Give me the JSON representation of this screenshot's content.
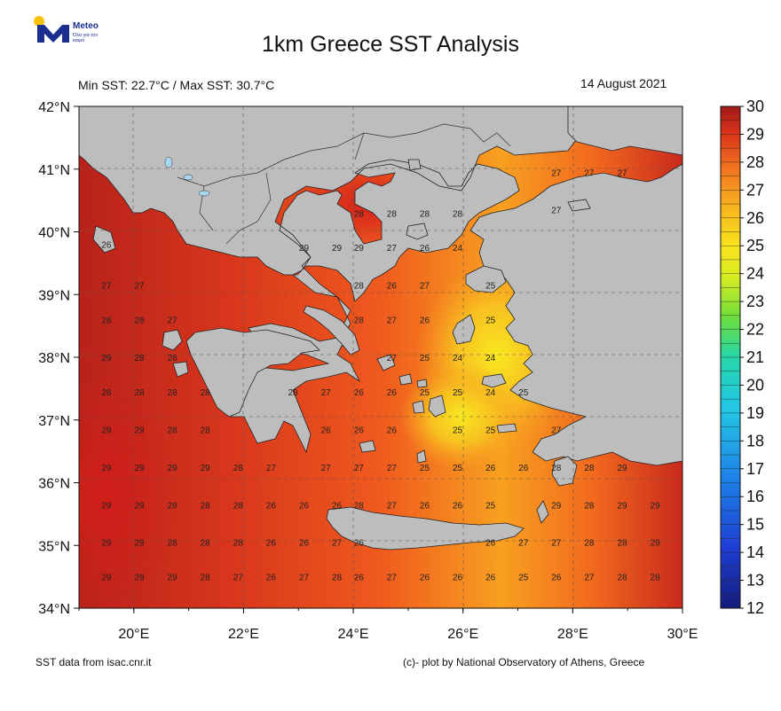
{
  "header": {
    "logo_text": "Meteo",
    "logo_subtext": "Όλα για τον καιρό",
    "title": "1km Greece SST Analysis",
    "minmax": "Min SST: 22.7°C / Max SST: 30.7°C",
    "date": "14 August 2021"
  },
  "footer": {
    "left": "SST data from isac.cnr.it",
    "right": "(c)- plot by National Observatory of Athens, Greece"
  },
  "map": {
    "lon_range": [
      19,
      30
    ],
    "lat_range": [
      34,
      42
    ],
    "lat_ticks": [
      "42°N",
      "41°N",
      "40°N",
      "39°N",
      "38°N",
      "37°N",
      "36°N",
      "35°N",
      "34°N"
    ],
    "lon_ticks": [
      "20°E",
      "22°E",
      "24°E",
      "26°E",
      "28°E",
      "30°E"
    ],
    "grid_lines": true,
    "colorbar": {
      "min": 12,
      "max": 30,
      "ticks": [
        "30",
        "29",
        "28",
        "27",
        "26",
        "25",
        "24",
        "23",
        "22",
        "21",
        "20",
        "19",
        "18",
        "17",
        "16",
        "15",
        "14",
        "13",
        "12"
      ]
    },
    "land_color": "#bdbdbd",
    "sea_labels": [
      {
        "lon": 19.5,
        "lat": 39.8,
        "v": "26"
      },
      {
        "lon": 19.5,
        "lat": 39.15,
        "v": "27"
      },
      {
        "lon": 20.1,
        "lat": 39.15,
        "v": "27"
      },
      {
        "lon": 19.5,
        "lat": 38.6,
        "v": "28"
      },
      {
        "lon": 20.1,
        "lat": 38.6,
        "v": "28"
      },
      {
        "lon": 20.7,
        "lat": 38.6,
        "v": "27"
      },
      {
        "lon": 19.5,
        "lat": 38.0,
        "v": "29"
      },
      {
        "lon": 20.1,
        "lat": 38.0,
        "v": "28"
      },
      {
        "lon": 20.7,
        "lat": 38.0,
        "v": "28"
      },
      {
        "lon": 19.5,
        "lat": 37.45,
        "v": "28"
      },
      {
        "lon": 20.1,
        "lat": 37.45,
        "v": "28"
      },
      {
        "lon": 20.7,
        "lat": 37.45,
        "v": "28"
      },
      {
        "lon": 21.3,
        "lat": 37.45,
        "v": "28"
      },
      {
        "lon": 19.5,
        "lat": 36.85,
        "v": "29"
      },
      {
        "lon": 20.1,
        "lat": 36.85,
        "v": "29"
      },
      {
        "lon": 20.7,
        "lat": 36.85,
        "v": "28"
      },
      {
        "lon": 21.3,
        "lat": 36.85,
        "v": "28"
      },
      {
        "lon": 19.5,
        "lat": 36.25,
        "v": "29"
      },
      {
        "lon": 20.1,
        "lat": 36.25,
        "v": "29"
      },
      {
        "lon": 20.7,
        "lat": 36.25,
        "v": "29"
      },
      {
        "lon": 21.3,
        "lat": 36.25,
        "v": "29"
      },
      {
        "lon": 21.9,
        "lat": 36.25,
        "v": "28"
      },
      {
        "lon": 22.5,
        "lat": 36.25,
        "v": "27"
      },
      {
        "lon": 19.5,
        "lat": 35.65,
        "v": "29"
      },
      {
        "lon": 20.1,
        "lat": 35.65,
        "v": "29"
      },
      {
        "lon": 20.7,
        "lat": 35.65,
        "v": "28"
      },
      {
        "lon": 21.3,
        "lat": 35.65,
        "v": "28"
      },
      {
        "lon": 21.9,
        "lat": 35.65,
        "v": "28"
      },
      {
        "lon": 22.5,
        "lat": 35.65,
        "v": "26"
      },
      {
        "lon": 23.1,
        "lat": 35.65,
        "v": "26"
      },
      {
        "lon": 23.7,
        "lat": 35.65,
        "v": "26"
      },
      {
        "lon": 24.1,
        "lat": 35.65,
        "v": "28"
      },
      {
        "lon": 24.7,
        "lat": 35.65,
        "v": "27"
      },
      {
        "lon": 25.3,
        "lat": 35.65,
        "v": "26"
      },
      {
        "lon": 25.9,
        "lat": 35.65,
        "v": "26"
      },
      {
        "lon": 26.5,
        "lat": 35.65,
        "v": "25"
      },
      {
        "lon": 27.7,
        "lat": 35.65,
        "v": "29"
      },
      {
        "lon": 28.3,
        "lat": 35.65,
        "v": "28"
      },
      {
        "lon": 28.9,
        "lat": 35.65,
        "v": "29"
      },
      {
        "lon": 29.5,
        "lat": 35.65,
        "v": "29"
      },
      {
        "lon": 19.5,
        "lat": 35.05,
        "v": "29"
      },
      {
        "lon": 20.1,
        "lat": 35.05,
        "v": "29"
      },
      {
        "lon": 20.7,
        "lat": 35.05,
        "v": "28"
      },
      {
        "lon": 21.3,
        "lat": 35.05,
        "v": "28"
      },
      {
        "lon": 21.9,
        "lat": 35.05,
        "v": "28"
      },
      {
        "lon": 22.5,
        "lat": 35.05,
        "v": "26"
      },
      {
        "lon": 23.1,
        "lat": 35.05,
        "v": "26"
      },
      {
        "lon": 23.7,
        "lat": 35.05,
        "v": "27"
      },
      {
        "lon": 24.1,
        "lat": 35.05,
        "v": "26"
      },
      {
        "lon": 26.5,
        "lat": 35.05,
        "v": "26"
      },
      {
        "lon": 27.1,
        "lat": 35.05,
        "v": "27"
      },
      {
        "lon": 27.7,
        "lat": 35.05,
        "v": "27"
      },
      {
        "lon": 28.3,
        "lat": 35.05,
        "v": "28"
      },
      {
        "lon": 28.9,
        "lat": 35.05,
        "v": "28"
      },
      {
        "lon": 29.5,
        "lat": 35.05,
        "v": "29"
      },
      {
        "lon": 19.5,
        "lat": 34.5,
        "v": "29"
      },
      {
        "lon": 20.1,
        "lat": 34.5,
        "v": "29"
      },
      {
        "lon": 20.7,
        "lat": 34.5,
        "v": "29"
      },
      {
        "lon": 21.3,
        "lat": 34.5,
        "v": "28"
      },
      {
        "lon": 21.9,
        "lat": 34.5,
        "v": "27"
      },
      {
        "lon": 22.5,
        "lat": 34.5,
        "v": "26"
      },
      {
        "lon": 23.1,
        "lat": 34.5,
        "v": "27"
      },
      {
        "lon": 23.7,
        "lat": 34.5,
        "v": "28"
      },
      {
        "lon": 24.1,
        "lat": 34.5,
        "v": "26"
      },
      {
        "lon": 24.7,
        "lat": 34.5,
        "v": "27"
      },
      {
        "lon": 25.3,
        "lat": 34.5,
        "v": "26"
      },
      {
        "lon": 25.9,
        "lat": 34.5,
        "v": "26"
      },
      {
        "lon": 26.5,
        "lat": 34.5,
        "v": "26"
      },
      {
        "lon": 27.1,
        "lat": 34.5,
        "v": "25"
      },
      {
        "lon": 27.7,
        "lat": 34.5,
        "v": "26"
      },
      {
        "lon": 28.3,
        "lat": 34.5,
        "v": "27"
      },
      {
        "lon": 28.9,
        "lat": 34.5,
        "v": "28"
      },
      {
        "lon": 29.5,
        "lat": 34.5,
        "v": "28"
      },
      {
        "lon": 23.1,
        "lat": 39.75,
        "v": "29"
      },
      {
        "lon": 23.7,
        "lat": 39.75,
        "v": "29"
      },
      {
        "lon": 24.1,
        "lat": 39.75,
        "v": "29"
      },
      {
        "lon": 24.7,
        "lat": 39.75,
        "v": "27"
      },
      {
        "lon": 25.3,
        "lat": 39.75,
        "v": "26"
      },
      {
        "lon": 25.9,
        "lat": 39.75,
        "v": "24"
      },
      {
        "lon": 24.1,
        "lat": 40.3,
        "v": "28"
      },
      {
        "lon": 24.7,
        "lat": 40.3,
        "v": "28"
      },
      {
        "lon": 25.3,
        "lat": 40.3,
        "v": "28"
      },
      {
        "lon": 25.9,
        "lat": 40.3,
        "v": "28"
      },
      {
        "lon": 24.1,
        "lat": 39.15,
        "v": "28"
      },
      {
        "lon": 24.7,
        "lat": 39.15,
        "v": "26"
      },
      {
        "lon": 25.3,
        "lat": 39.15,
        "v": "27"
      },
      {
        "lon": 26.5,
        "lat": 39.15,
        "v": "25"
      },
      {
        "lon": 24.1,
        "lat": 38.6,
        "v": "28"
      },
      {
        "lon": 24.7,
        "lat": 38.6,
        "v": "27"
      },
      {
        "lon": 25.3,
        "lat": 38.6,
        "v": "26"
      },
      {
        "lon": 26.5,
        "lat": 38.6,
        "v": "25"
      },
      {
        "lon": 24.7,
        "lat": 38.0,
        "v": "27"
      },
      {
        "lon": 25.3,
        "lat": 38.0,
        "v": "25"
      },
      {
        "lon": 25.9,
        "lat": 38.0,
        "v": "24"
      },
      {
        "lon": 26.5,
        "lat": 38.0,
        "v": "24"
      },
      {
        "lon": 22.9,
        "lat": 37.45,
        "v": "28"
      },
      {
        "lon": 23.5,
        "lat": 37.45,
        "v": "27"
      },
      {
        "lon": 24.1,
        "lat": 37.45,
        "v": "26"
      },
      {
        "lon": 24.7,
        "lat": 37.45,
        "v": "26"
      },
      {
        "lon": 25.3,
        "lat": 37.45,
        "v": "25"
      },
      {
        "lon": 25.9,
        "lat": 37.45,
        "v": "25"
      },
      {
        "lon": 26.5,
        "lat": 37.45,
        "v": "24"
      },
      {
        "lon": 27.1,
        "lat": 37.45,
        "v": "25"
      },
      {
        "lon": 23.5,
        "lat": 36.85,
        "v": "26"
      },
      {
        "lon": 24.1,
        "lat": 36.85,
        "v": "26"
      },
      {
        "lon": 24.7,
        "lat": 36.85,
        "v": "26"
      },
      {
        "lon": 25.9,
        "lat": 36.85,
        "v": "25"
      },
      {
        "lon": 26.5,
        "lat": 36.85,
        "v": "25"
      },
      {
        "lon": 27.7,
        "lat": 36.85,
        "v": "27"
      },
      {
        "lon": 23.5,
        "lat": 36.25,
        "v": "27"
      },
      {
        "lon": 24.1,
        "lat": 36.25,
        "v": "27"
      },
      {
        "lon": 24.7,
        "lat": 36.25,
        "v": "27"
      },
      {
        "lon": 25.3,
        "lat": 36.25,
        "v": "25"
      },
      {
        "lon": 25.9,
        "lat": 36.25,
        "v": "25"
      },
      {
        "lon": 26.5,
        "lat": 36.25,
        "v": "26"
      },
      {
        "lon": 27.1,
        "lat": 36.25,
        "v": "26"
      },
      {
        "lon": 27.7,
        "lat": 36.25,
        "v": "28"
      },
      {
        "lon": 28.3,
        "lat": 36.25,
        "v": "28"
      },
      {
        "lon": 28.9,
        "lat": 36.25,
        "v": "29"
      },
      {
        "lon": 27.7,
        "lat": 40.95,
        "v": "27"
      },
      {
        "lon": 28.3,
        "lat": 40.95,
        "v": "27"
      },
      {
        "lon": 28.9,
        "lat": 40.95,
        "v": "27"
      },
      {
        "lon": 27.7,
        "lat": 40.35,
        "v": "27"
      }
    ]
  }
}
